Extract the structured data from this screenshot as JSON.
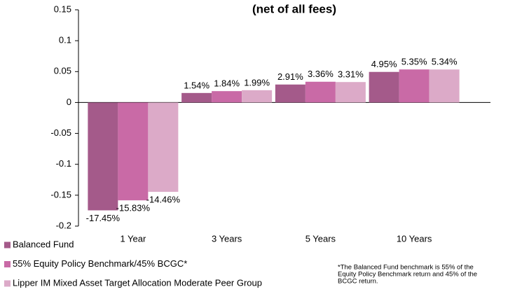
{
  "chart_data": {
    "type": "bar",
    "title": "(net of all fees)",
    "categories": [
      "1 Year",
      "3 Years",
      "5 Years",
      "10 Years"
    ],
    "series": [
      {
        "name": "Balanced Fund",
        "color": "#a45a8a",
        "values": [
          -0.1745,
          0.0154,
          0.0291,
          0.0495
        ],
        "value_labels": [
          "-17.45%",
          "1.54%",
          "2.91%",
          "4.95%"
        ]
      },
      {
        "name": "55% Equity Policy Benchmark/45% BCGC*",
        "color": "#c96aa6",
        "values": [
          -0.1583,
          0.0184,
          0.0336,
          0.0535
        ],
        "value_labels": [
          "-15.83%",
          "1.84%",
          "3.36%",
          "5.35%"
        ]
      },
      {
        "name": "Lipper IM Mixed Asset Target Allocation Moderate Peer Group",
        "color": "#dcaac8",
        "values": [
          -0.1446,
          0.0199,
          0.0331,
          0.0534
        ],
        "value_labels": [
          "-14.46%",
          "1.99%",
          "3.31%",
          "5.34%"
        ]
      }
    ],
    "ylim": [
      -0.2,
      0.15
    ],
    "yticks": [
      -0.2,
      -0.15,
      -0.1,
      -0.05,
      0,
      0.05,
      0.1,
      0.15
    ],
    "grid": false,
    "legend": "bottom",
    "footnote": [
      "*The Balanced Fund benchmark is 55% of the",
      "Equity Policy Benchmark return and 45% of the",
      "BCGC return."
    ]
  }
}
